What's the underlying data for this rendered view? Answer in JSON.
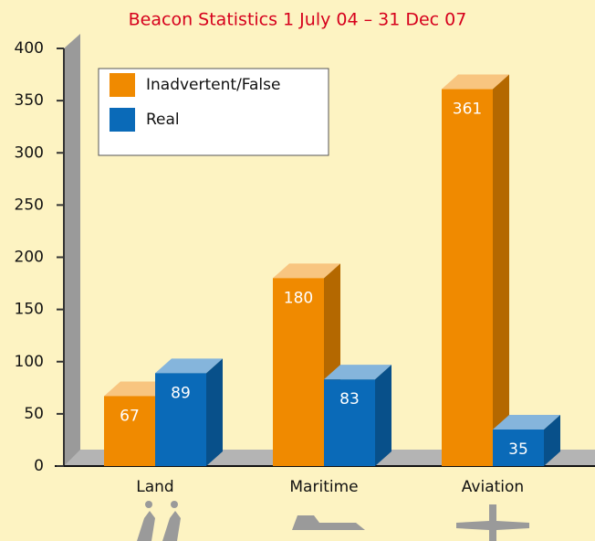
{
  "chart_data": {
    "type": "bar",
    "title": "Beacon Statistics 1 July 04 – 31 Dec 07",
    "categories": [
      "Land",
      "Maritime",
      "Aviation"
    ],
    "series": [
      {
        "name": "Inadvertent/False",
        "color": "#f08a00",
        "values": [
          67,
          180,
          361
        ]
      },
      {
        "name": "Real",
        "color": "#0a6ab8",
        "values": [
          89,
          83,
          35
        ]
      }
    ],
    "ylim": [
      0,
      400
    ],
    "yticks": [
      0,
      50,
      100,
      150,
      200,
      250,
      300,
      350,
      400
    ]
  }
}
